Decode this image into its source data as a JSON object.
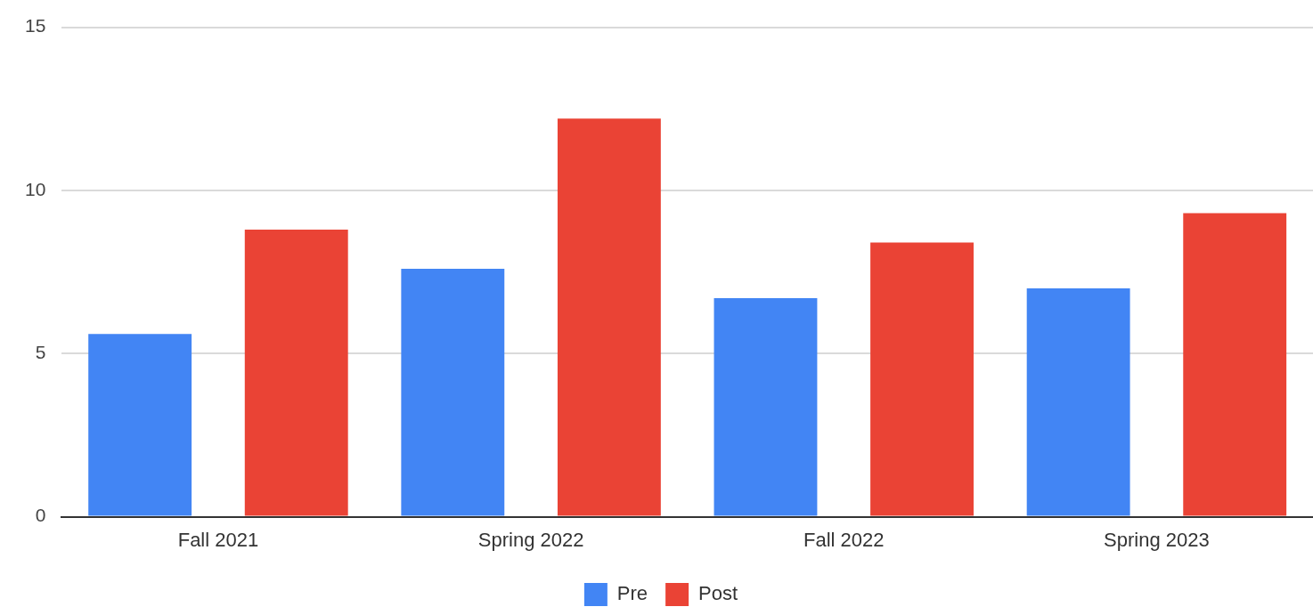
{
  "chart_data": {
    "type": "bar",
    "categories": [
      "Fall 2021",
      "Spring 2022",
      "Fall 2022",
      "Spring 2023"
    ],
    "series": [
      {
        "name": "Pre",
        "color": "#4285f4",
        "values": [
          5.6,
          7.6,
          6.7,
          7.0
        ]
      },
      {
        "name": "Post",
        "color": "#ea4335",
        "values": [
          8.8,
          12.2,
          8.4,
          9.3
        ]
      }
    ],
    "ylim": [
      0,
      15
    ],
    "yticks": [
      0,
      5,
      10,
      15
    ],
    "grid": "y",
    "legend": "bottom"
  }
}
